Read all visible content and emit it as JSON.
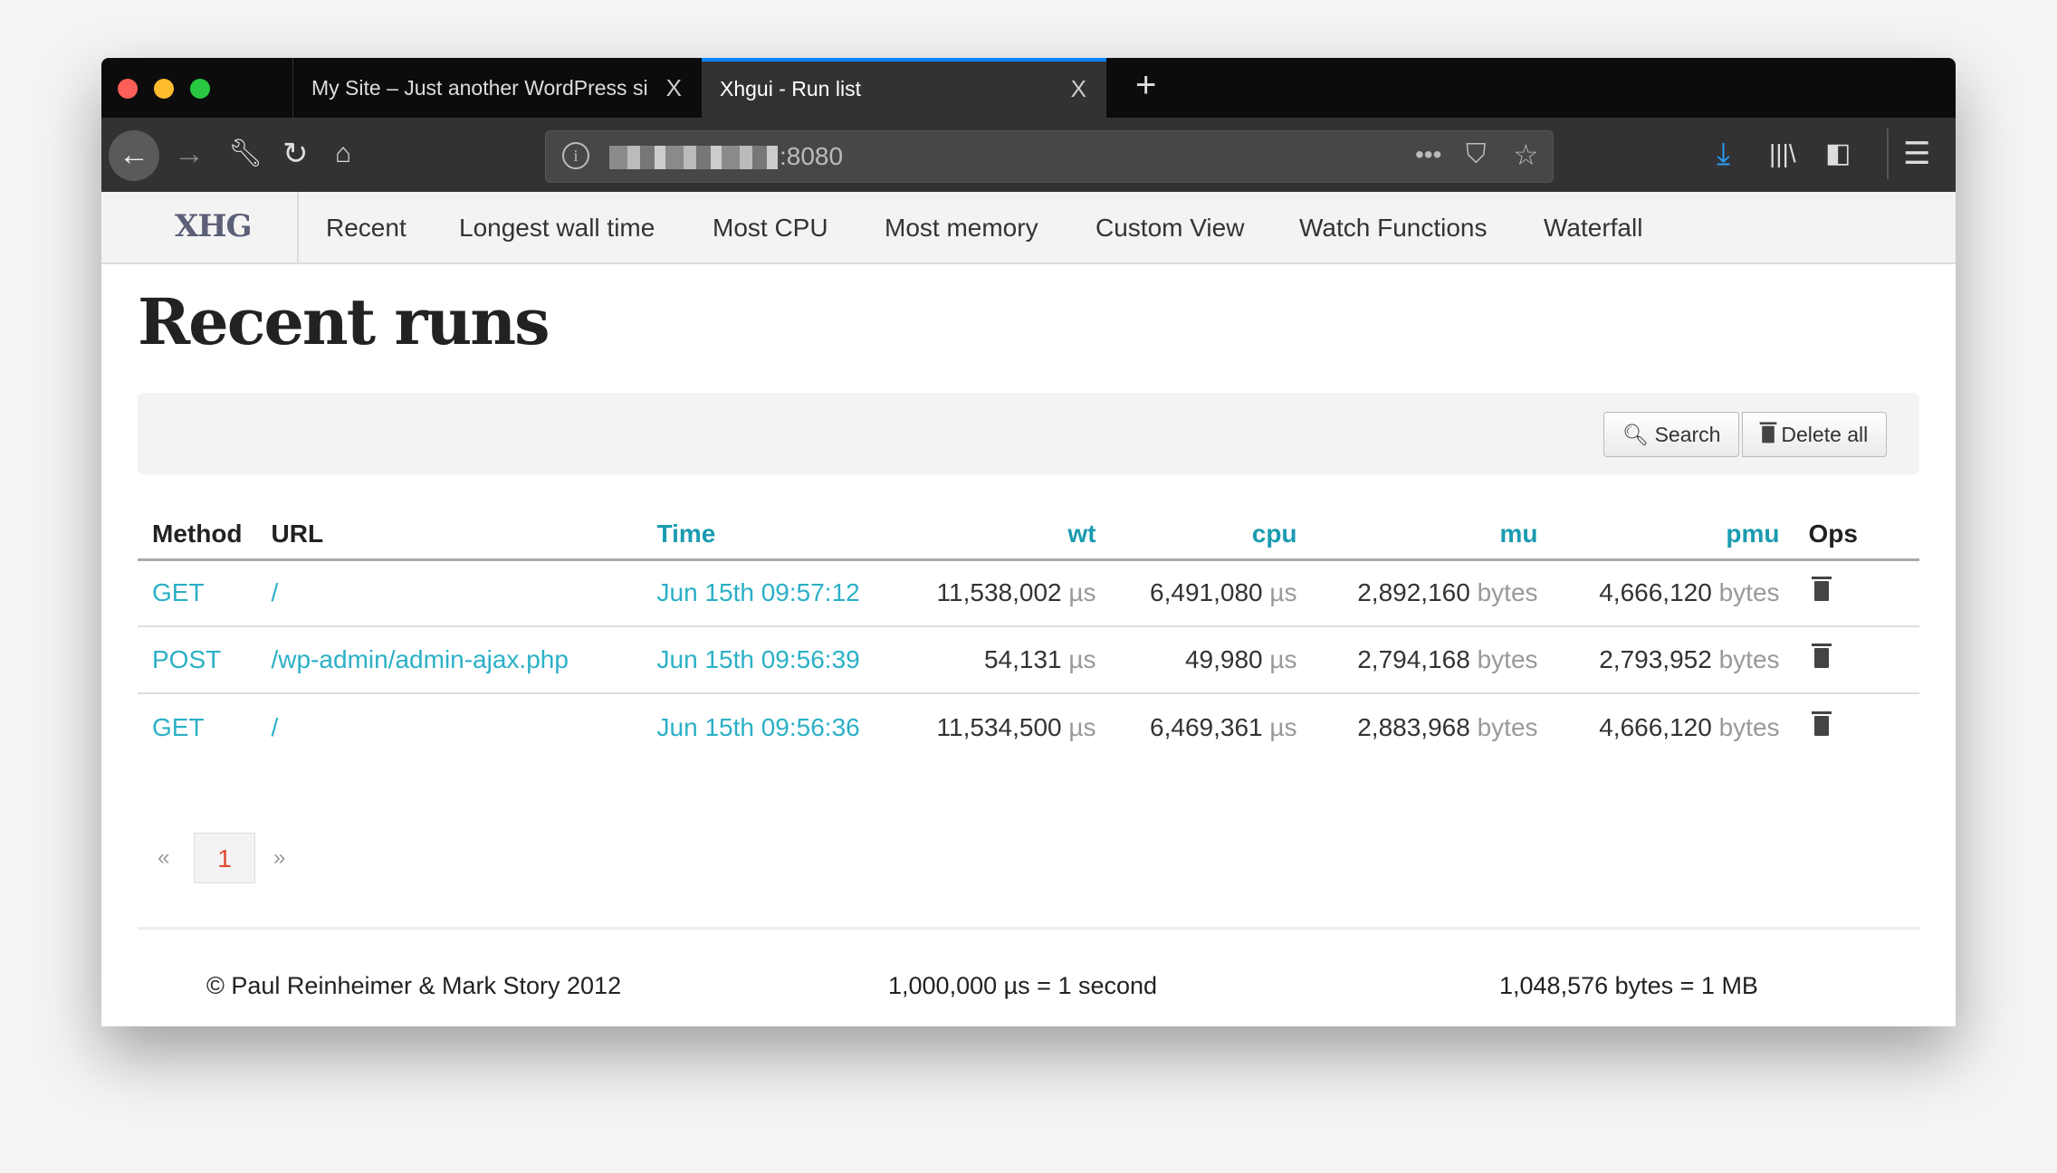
{
  "browser": {
    "tabs": [
      {
        "title": "My Site – Just another WordPress si",
        "active": false
      },
      {
        "title": "Xhgui - Run list",
        "active": true
      }
    ],
    "new_tab": "+",
    "close": "X",
    "url_host_suffix": ":8080",
    "accent": "#0a84ff"
  },
  "nav": {
    "brand": "XHG",
    "items": [
      "Recent",
      "Longest wall time",
      "Most CPU",
      "Most memory",
      "Custom View",
      "Watch Functions",
      "Waterfall"
    ]
  },
  "page": {
    "title": "Recent runs",
    "search_label": "Search",
    "delete_all_label": "Delete all"
  },
  "table": {
    "headers": [
      "Method",
      "URL",
      "Time",
      "wt",
      "cpu",
      "mu",
      "pmu",
      "Ops"
    ],
    "rows": [
      {
        "method": "GET",
        "url": "/",
        "time": "Jun 15th 09:57:12",
        "wt": "11,538,002",
        "cpu": "6,491,080",
        "mu": "2,892,160",
        "pmu": "4,666,120"
      },
      {
        "method": "POST",
        "url": "/wp-admin/admin-ajax.php",
        "time": "Jun 15th 09:56:39",
        "wt": "54,131",
        "cpu": "49,980",
        "mu": "2,794,168",
        "pmu": "2,793,952"
      },
      {
        "method": "GET",
        "url": "/",
        "time": "Jun 15th 09:56:36",
        "wt": "11,534,500",
        "cpu": "6,469,361",
        "mu": "2,883,968",
        "pmu": "4,666,120"
      }
    ],
    "time_unit": "µs",
    "mem_unit": "bytes"
  },
  "pagination": {
    "prev": "«",
    "current": "1",
    "next": "»"
  },
  "footer": {
    "copyright": "© Paul Reinheimer & Mark Story 2012",
    "time_note": "1,000,000 µs = 1 second",
    "mem_note": "1,048,576 bytes = 1 MB"
  }
}
